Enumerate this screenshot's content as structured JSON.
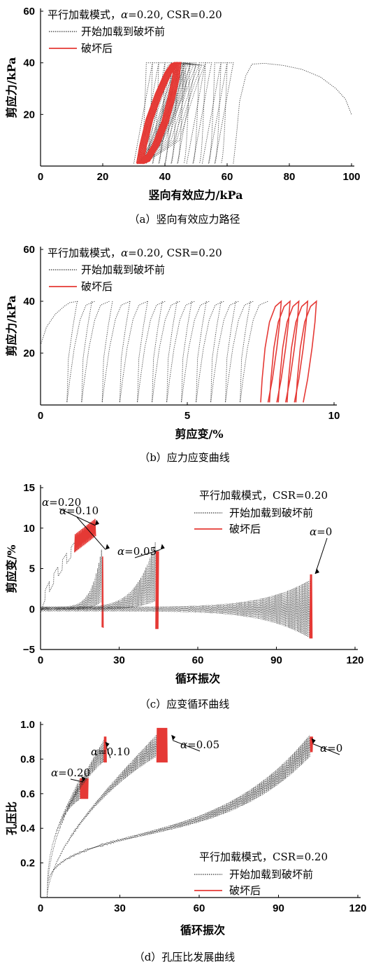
{
  "colors": {
    "before": "#333333",
    "after": "#e53935"
  },
  "chart_data": [
    {
      "type": "line",
      "caption": "（a）竖向有效应力路径",
      "xlabel": "竖向有效应力/kPa",
      "ylabel": "剪应力/kPa",
      "xlim": [
        0,
        100
      ],
      "ylim": [
        0,
        60
      ],
      "xticks": [
        "0",
        "20",
        "40",
        "60",
        "80",
        "100"
      ],
      "yticks": [
        "20",
        "40",
        "60"
      ],
      "xtick_values": [
        0,
        20,
        40,
        60,
        80,
        100
      ],
      "ytick_values": [
        20,
        40,
        60
      ],
      "legend": {
        "title": "平行加载模式，",
        "alpha_label": "α",
        "title_rest": "=0.20, CSR=0.20",
        "before": "开始加载到破坏前",
        "after": "破坏后",
        "position": "top-left"
      },
      "series": [
        {
          "name": "开始加载到破坏前",
          "style": "dotted",
          "x": [
            100,
            98,
            92,
            84,
            76,
            70,
            66,
            63,
            61,
            60,
            60.5,
            61,
            59,
            57,
            56,
            55,
            54,
            53.5,
            53,
            52.5,
            51,
            50,
            49,
            48,
            47,
            46,
            45,
            44,
            43,
            42,
            41,
            40,
            39,
            38,
            37,
            36,
            35,
            34,
            33,
            32
          ],
          "y": [
            20,
            28,
            34,
            37,
            39,
            39.5,
            37,
            30,
            20,
            10,
            2,
            40,
            32,
            20,
            10,
            3,
            40,
            25,
            10,
            2,
            40,
            38,
            35,
            30,
            25,
            20,
            15,
            10,
            6,
            3,
            40,
            36,
            30,
            22,
            15,
            10,
            6,
            3,
            1,
            0.5
          ]
        },
        {
          "name": "破坏后",
          "style": "solid",
          "x": [
            31,
            32,
            33,
            35,
            37,
            39,
            41,
            42,
            43,
            43.5,
            43,
            42,
            41,
            40,
            39,
            38,
            37,
            36,
            34,
            32
          ],
          "y": [
            1,
            8,
            15,
            22,
            29,
            34,
            38,
            39.5,
            40,
            38,
            32,
            26,
            20,
            15,
            11,
            7,
            4,
            2,
            1,
            1
          ]
        }
      ]
    },
    {
      "type": "line",
      "caption": "（b）应力应变曲线",
      "xlabel": "剪应变/%",
      "ylabel": "剪应力/kPa",
      "xlim": [
        0,
        10
      ],
      "ylim": [
        0,
        60
      ],
      "xticks": [
        "0",
        "5",
        "10"
      ],
      "yticks": [
        "20",
        "40",
        "60"
      ],
      "xtick_values": [
        0,
        5,
        10
      ],
      "ytick_values": [
        20,
        40,
        60
      ],
      "legend": {
        "title": "平行加载模式，",
        "alpha_label": "α",
        "title_rest": "=0.20, CSR=0.20",
        "before": "开始加载到破坏前",
        "after": "破坏后",
        "position": "top-left"
      },
      "cycle_starts": [
        0.0,
        1.3,
        1.8,
        2.5,
        3.1,
        3.7,
        4.2,
        4.7,
        5.2,
        5.7,
        6.2,
        6.7,
        7.2
      ],
      "failure_cycle_starts": [
        7.6,
        7.9,
        8.2,
        8.5,
        8.8
      ],
      "peak": 40
    },
    {
      "type": "line",
      "caption": "（c）应变循环曲线",
      "xlabel": "循环振次",
      "ylabel": "剪应变/%",
      "xlim": [
        0,
        120
      ],
      "ylim": [
        -5,
        15
      ],
      "xticks": [
        "0",
        "30",
        "60",
        "90",
        "120"
      ],
      "yticks": [
        "−5",
        "0",
        "5",
        "10",
        "15"
      ],
      "xtick_values": [
        0,
        30,
        60,
        90,
        120
      ],
      "ytick_values": [
        -5,
        0,
        5,
        10,
        15
      ],
      "legend": {
        "title": "平行加载模式，CSR=0.20",
        "before": "开始加载到破坏前",
        "after": "破坏后",
        "position": "top-right"
      },
      "annotations": [
        {
          "alpha": "α",
          "text": "=0.20",
          "target": [
            20,
            10
          ]
        },
        {
          "alpha": "α",
          "text": "=0.10",
          "target": [
            24,
            7
          ]
        },
        {
          "alpha": "α",
          "text": "=0.05",
          "target": [
            45,
            7
          ]
        },
        {
          "alpha": "α",
          "text": "=0",
          "target": [
            104,
            4
          ]
        }
      ],
      "curves": [
        {
          "alpha": "0.20",
          "fail_at": 15,
          "end": 21,
          "amp": 1.2
        },
        {
          "alpha": "0.10",
          "fail_at": 23,
          "end": 24,
          "amp": 4
        },
        {
          "alpha": "0.05",
          "fail_at": 44,
          "end": 45,
          "amp": 5
        },
        {
          "alpha": "0",
          "fail_at": 103,
          "end": 104,
          "amp": 4.5
        }
      ]
    },
    {
      "type": "line",
      "caption": "（d）孔压比发展曲线",
      "xlabel": "循环振次",
      "ylabel": "孔压比",
      "xlim": [
        0,
        120
      ],
      "ylim": [
        0,
        1.0
      ],
      "xticks": [
        "0",
        "30",
        "60",
        "90",
        "120"
      ],
      "yticks": [
        "0.2",
        "0.4",
        "0.6",
        "0.8",
        "1.0"
      ],
      "xtick_values": [
        0,
        30,
        60,
        90,
        120
      ],
      "ytick_values": [
        0.2,
        0.4,
        0.6,
        0.8,
        1.0
      ],
      "legend": {
        "title": "平行加载模式，CSR=0.20",
        "before": "开始加载到破坏前",
        "after": "破坏后",
        "position": "bottom-right"
      },
      "annotations": [
        {
          "alpha": "α",
          "text": "=0.20",
          "target": [
            16,
            0.66
          ]
        },
        {
          "alpha": "α",
          "text": "=0.10",
          "target": [
            25,
            0.86
          ]
        },
        {
          "alpha": "α",
          "text": "=0.05",
          "target": [
            50,
            0.9
          ]
        },
        {
          "alpha": "α",
          "text": "=0",
          "target": [
            103,
            0.88
          ]
        }
      ],
      "curves": [
        {
          "alpha": "0.20",
          "fail_at": 15,
          "end": 18,
          "low": 0.57,
          "high": 0.69
        },
        {
          "alpha": "0.10",
          "fail_at": 24,
          "end": 25,
          "low": 0.78,
          "high": 0.93
        },
        {
          "alpha": "0.05",
          "fail_at": 44,
          "end": 48,
          "low": 0.78,
          "high": 0.98
        },
        {
          "alpha": "0",
          "fail_at": 102,
          "end": 103,
          "low": 0.84,
          "high": 0.93
        }
      ]
    }
  ]
}
